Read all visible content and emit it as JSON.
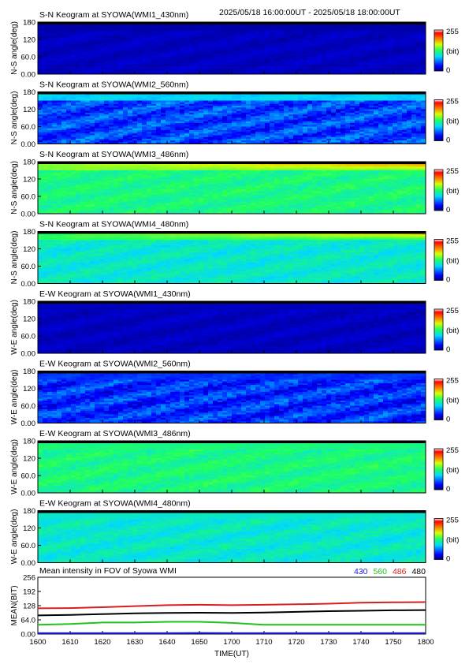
{
  "chart_data": {
    "type": "heatmap",
    "time_range": "2025/05/18 16:00:00UT - 2025/05/18 18:00:00UT",
    "colorbar": {
      "max_label": "255",
      "unit_label": "(bit)",
      "min_label": "0"
    },
    "y_ticks": [
      "180",
      "120",
      "60.0",
      "0.00"
    ],
    "panels": [
      {
        "title": "S-N Keogram at SYOWA(WMI1_430nm)",
        "ylabel": "N-S angle(deg)",
        "level": 0.06,
        "top_band": 0.03,
        "top_hot": false,
        "var": 0.03
      },
      {
        "title": "S-N Keogram at SYOWA(WMI2_560nm)",
        "ylabel": "N-S angle(deg)",
        "level": 0.19,
        "top_band": 0.42,
        "top_hot": false,
        "var": 0.12
      },
      {
        "title": "S-N Keogram at SYOWA(WMI3_486nm)",
        "ylabel": "N-S angle(deg)",
        "level": 0.47,
        "top_band": 0.62,
        "top_hot": true,
        "var": 0.06
      },
      {
        "title": "S-N Keogram at SYOWA(WMI4_480nm)",
        "ylabel": "N-S angle(deg)",
        "level": 0.4,
        "top_band": 0.55,
        "top_hot": true,
        "var": 0.06
      },
      {
        "title": "E-W Keogram at SYOWA(WMI1_430nm)",
        "ylabel": "W-E angle(deg)",
        "level": 0.06,
        "top_band": 0.06,
        "top_hot": false,
        "var": 0.03
      },
      {
        "title": "E-W Keogram at SYOWA(WMI2_560nm)",
        "ylabel": "W-E angle(deg)",
        "level": 0.17,
        "top_band": 0.17,
        "top_hot": false,
        "var": 0.12
      },
      {
        "title": "E-W Keogram at SYOWA(WMI3_486nm)",
        "ylabel": "W-E angle(deg)",
        "level": 0.47,
        "top_band": 0.47,
        "top_hot": false,
        "var": 0.06
      },
      {
        "title": "E-W Keogram at SYOWA(WMI4_480nm)",
        "ylabel": "W-E angle(deg)",
        "level": 0.4,
        "top_band": 0.4,
        "top_hot": false,
        "var": 0.06
      }
    ],
    "line_chart": {
      "type": "line",
      "title": "Mean intensity in FOV of Syowa WMI",
      "xlabel": "TIME(UT)",
      "ylabel": "MEAN(BIT)",
      "ylim": [
        0,
        256
      ],
      "y_ticks": [
        "256",
        "192",
        "128",
        "64.0",
        "0.00"
      ],
      "x_ticks": [
        "1600",
        "1610",
        "1620",
        "1630",
        "1640",
        "1650",
        "1700",
        "1710",
        "1720",
        "1730",
        "1740",
        "1750",
        "1800"
      ],
      "x_minutes": [
        0,
        10,
        20,
        30,
        40,
        50,
        60,
        70,
        80,
        90,
        100,
        110,
        120
      ],
      "series": [
        {
          "name": "430",
          "color": "#1a1adc",
          "values": [
            4,
            4,
            4,
            4,
            4,
            5,
            4,
            4,
            4,
            4,
            4,
            4,
            4
          ]
        },
        {
          "name": "560",
          "color": "#1fc21f",
          "values": [
            42,
            45,
            52,
            52,
            55,
            55,
            50,
            42,
            42,
            42,
            42,
            42,
            42
          ]
        },
        {
          "name": "486",
          "color": "#d81e1e",
          "values": [
            116,
            117,
            121,
            126,
            130,
            132,
            130,
            132,
            134,
            137,
            141,
            143,
            144
          ]
        },
        {
          "name": "480",
          "color": "#000000",
          "values": [
            84,
            86,
            90,
            93,
            95,
            96,
            95,
            97,
            100,
            103,
            105,
            107,
            108
          ]
        }
      ]
    }
  }
}
